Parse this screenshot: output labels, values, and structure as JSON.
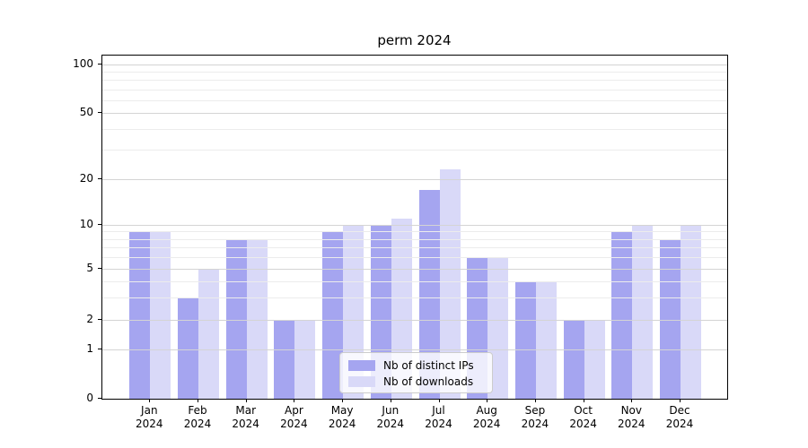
{
  "title": "perm 2024",
  "chart_data": {
    "type": "bar",
    "title": "perm 2024",
    "categories": [
      "Jan 2024",
      "Feb 2024",
      "Mar 2024",
      "Apr 2024",
      "May 2024",
      "Jun 2024",
      "Jul 2024",
      "Aug 2024",
      "Sep 2024",
      "Oct 2024",
      "Nov 2024",
      "Dec 2024"
    ],
    "x_tick_month": [
      "Jan",
      "Feb",
      "Mar",
      "Apr",
      "May",
      "Jun",
      "Jul",
      "Aug",
      "Sep",
      "Oct",
      "Nov",
      "Dec"
    ],
    "x_tick_year": "2024",
    "series": [
      {
        "name": "Nb of distinct IPs",
        "color": "#a5a5f0",
        "values": [
          9,
          3,
          8,
          2,
          9,
          10,
          17,
          6,
          4,
          2,
          9,
          8
        ]
      },
      {
        "name": "Nb of downloads",
        "color": "#d9d9f8",
        "values": [
          9,
          5,
          8,
          2,
          10,
          11,
          23,
          6,
          4,
          2,
          10,
          10
        ]
      }
    ],
    "yscale": "symlog",
    "ylim": [
      0,
      110
    ],
    "y_major_ticks": [
      0,
      1,
      2,
      5,
      10,
      20,
      50,
      100
    ],
    "y_minor_ticks": [
      3,
      4,
      6,
      7,
      8,
      9,
      30,
      40,
      60,
      70,
      80,
      90
    ],
    "grid": true,
    "legend_position": "lower center"
  },
  "colors": {
    "ips_bar": "#a5a5f0",
    "downloads_bar": "#d9d9f8",
    "major_grid": "#d4d4d4",
    "minor_grid": "#ececec",
    "spine": "#000000",
    "legend_border": "#cccccc"
  }
}
